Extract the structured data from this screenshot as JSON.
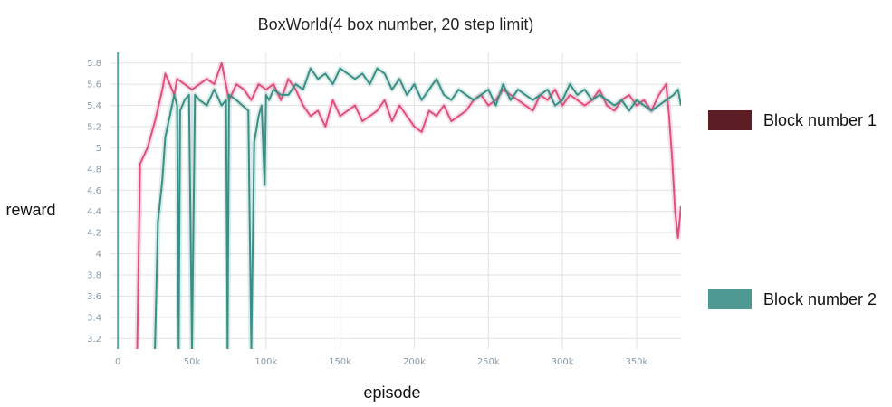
{
  "chart_data": {
    "type": "line",
    "title": "BoxWorld(4 box number, 20 step limit)",
    "xlabel": "episode",
    "ylabel": "reward",
    "xlim": [
      -5000,
      380000
    ],
    "ylim": [
      3.1,
      5.9
    ],
    "xticks": [
      0,
      50000,
      100000,
      150000,
      200000,
      250000,
      300000,
      350000
    ],
    "xtick_labels": [
      "0",
      "50k",
      "100k",
      "150k",
      "200k",
      "250k",
      "300k",
      "350k"
    ],
    "yticks": [
      3.2,
      3.4,
      3.6,
      3.8,
      4.0,
      4.2,
      4.4,
      4.6,
      4.8,
      5.0,
      5.2,
      5.4,
      5.6,
      5.8
    ],
    "ytick_labels": [
      "3.2",
      "3.4",
      "3.6",
      "3.8",
      "4",
      "4.2",
      "4.4",
      "4.6",
      "4.8",
      "5",
      "5.2",
      "5.4",
      "5.6",
      "5.8"
    ],
    "grid": true,
    "legend_position": "right",
    "series": [
      {
        "name": "Block number 1",
        "color": "#e0507f",
        "legend_color": "#5c1e24",
        "x": [
          13000,
          15000,
          20000,
          25000,
          30000,
          32000,
          35000,
          38000,
          40000,
          45000,
          50000,
          55000,
          60000,
          65000,
          70000,
          75000,
          80000,
          85000,
          90000,
          95000,
          100000,
          105000,
          110000,
          115000,
          120000,
          125000,
          130000,
          135000,
          140000,
          145000,
          150000,
          155000,
          160000,
          165000,
          170000,
          175000,
          180000,
          185000,
          190000,
          195000,
          200000,
          205000,
          210000,
          215000,
          220000,
          225000,
          230000,
          235000,
          240000,
          245000,
          250000,
          255000,
          260000,
          265000,
          270000,
          275000,
          280000,
          285000,
          290000,
          295000,
          300000,
          305000,
          310000,
          315000,
          320000,
          325000,
          330000,
          335000,
          340000,
          345000,
          350000,
          355000,
          360000,
          365000,
          370000,
          372000,
          374000,
          376000,
          378000,
          380000
        ],
        "y": [
          3.1,
          4.85,
          5.0,
          5.25,
          5.55,
          5.7,
          5.6,
          5.5,
          5.65,
          5.6,
          5.55,
          5.6,
          5.65,
          5.6,
          5.8,
          5.45,
          5.6,
          5.55,
          5.45,
          5.6,
          5.55,
          5.6,
          5.45,
          5.65,
          5.55,
          5.4,
          5.3,
          5.35,
          5.2,
          5.45,
          5.3,
          5.35,
          5.4,
          5.25,
          5.3,
          5.35,
          5.45,
          5.25,
          5.4,
          5.3,
          5.2,
          5.15,
          5.35,
          5.3,
          5.4,
          5.25,
          5.3,
          5.35,
          5.45,
          5.5,
          5.4,
          5.45,
          5.55,
          5.5,
          5.45,
          5.4,
          5.35,
          5.5,
          5.45,
          5.55,
          5.4,
          5.5,
          5.45,
          5.4,
          5.45,
          5.55,
          5.4,
          5.35,
          5.45,
          5.5,
          5.4,
          5.45,
          5.35,
          5.5,
          5.6,
          5.3,
          4.9,
          4.4,
          4.15,
          4.45
        ]
      },
      {
        "name": "Block number 2",
        "color": "#3a8f86",
        "legend_color": "#4e9a92",
        "x": [
          25000,
          27000,
          30000,
          32000,
          35000,
          38000,
          40000,
          41000,
          42000,
          45000,
          48000,
          50000,
          52000,
          55000,
          60000,
          65000,
          70000,
          73000,
          74000,
          75000,
          80000,
          88000,
          90000,
          92000,
          95000,
          97000,
          99000,
          100000,
          102000,
          105000,
          110000,
          115000,
          120000,
          125000,
          130000,
          135000,
          140000,
          145000,
          150000,
          155000,
          160000,
          165000,
          170000,
          175000,
          180000,
          185000,
          190000,
          195000,
          200000,
          205000,
          210000,
          215000,
          220000,
          225000,
          230000,
          235000,
          240000,
          245000,
          250000,
          255000,
          260000,
          265000,
          270000,
          275000,
          280000,
          285000,
          290000,
          295000,
          300000,
          305000,
          310000,
          315000,
          320000,
          325000,
          330000,
          335000,
          340000,
          345000,
          350000,
          355000,
          360000,
          365000,
          370000,
          375000,
          378000,
          380000
        ],
        "y": [
          3.1,
          4.3,
          4.7,
          5.1,
          5.3,
          5.5,
          5.4,
          3.1,
          5.35,
          5.45,
          5.5,
          3.1,
          5.5,
          5.45,
          5.4,
          5.55,
          5.4,
          5.45,
          3.1,
          5.5,
          5.45,
          5.35,
          3.1,
          5.05,
          5.3,
          5.4,
          4.65,
          5.5,
          5.45,
          5.55,
          5.5,
          5.5,
          5.6,
          5.55,
          5.75,
          5.65,
          5.7,
          5.6,
          5.75,
          5.7,
          5.65,
          5.7,
          5.6,
          5.75,
          5.7,
          5.55,
          5.65,
          5.5,
          5.6,
          5.45,
          5.55,
          5.65,
          5.5,
          5.45,
          5.55,
          5.5,
          5.45,
          5.5,
          5.55,
          5.4,
          5.6,
          5.45,
          5.55,
          5.5,
          5.45,
          5.5,
          5.55,
          5.4,
          5.45,
          5.6,
          5.5,
          5.55,
          5.45,
          5.5,
          5.45,
          5.4,
          5.45,
          5.35,
          5.45,
          5.4,
          5.35,
          5.4,
          5.45,
          5.5,
          5.55,
          5.4
        ]
      }
    ]
  }
}
